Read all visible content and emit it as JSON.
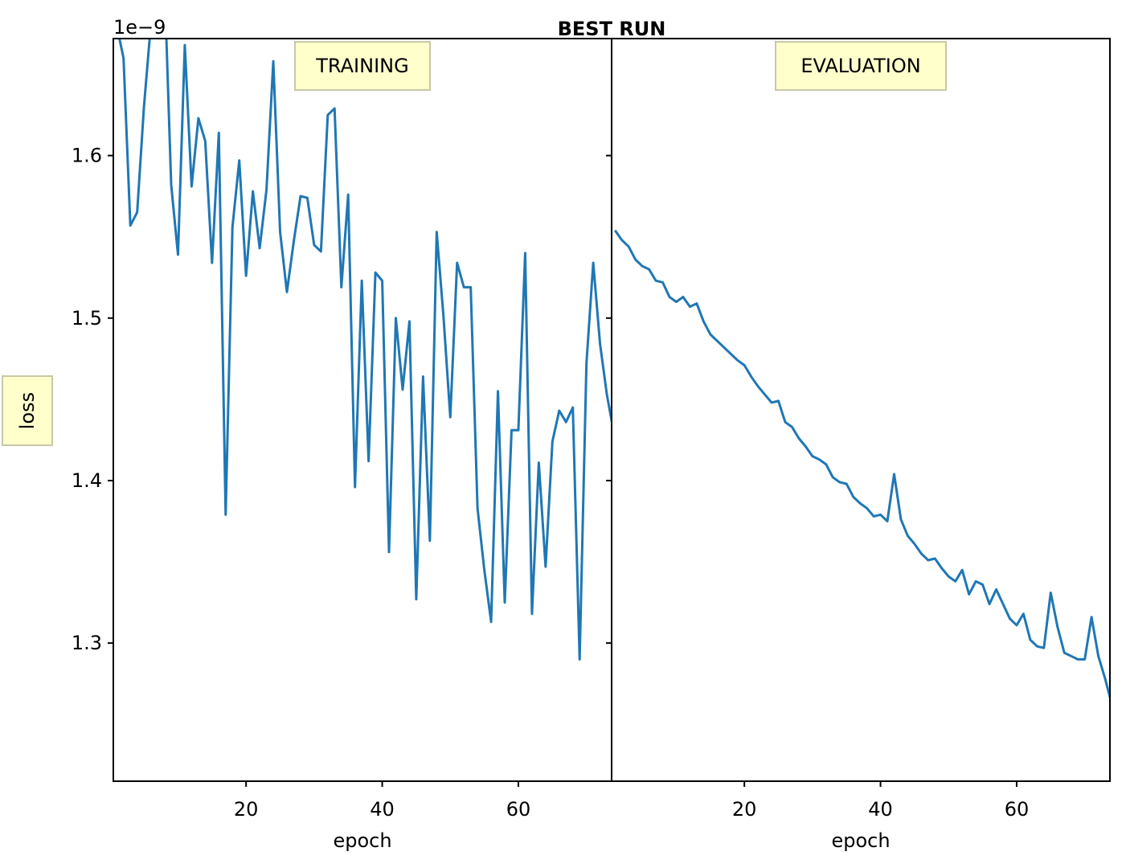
{
  "chart_data": {
    "type": "line",
    "title": "BEST RUN",
    "shared_ylabel": "loss",
    "y_offset_label": "1e−9",
    "ylim": [
      1.215,
      1.672
    ],
    "yticks": [
      1.3,
      1.4,
      1.5,
      1.6
    ],
    "ytick_labels": [
      "1.3",
      "1.4",
      "1.5",
      "1.6"
    ],
    "grid": false,
    "series_color": "#1f77b4",
    "badge_color": "#ffffcc",
    "panels": [
      {
        "name": "TRAINING",
        "xlabel": "epoch",
        "xlim": [
          0.5,
          73.7
        ],
        "xticks": [
          20,
          40,
          60
        ],
        "xtick_labels": [
          "20",
          "40",
          "60"
        ],
        "x": [
          1,
          2,
          3,
          4,
          5,
          6,
          7,
          8,
          9,
          10,
          11,
          12,
          13,
          14,
          15,
          16,
          17,
          18,
          19,
          20,
          21,
          22,
          23,
          24,
          25,
          26,
          27,
          28,
          29,
          30,
          31,
          32,
          33,
          34,
          35,
          36,
          37,
          38,
          39,
          40,
          41,
          42,
          43,
          44,
          45,
          46,
          47,
          48,
          49,
          50,
          51,
          52,
          53,
          54,
          55,
          56,
          57,
          58,
          59,
          60,
          61,
          62,
          63,
          64,
          65,
          66,
          67,
          68,
          69,
          70,
          71,
          72,
          73,
          74
        ],
        "y": [
          1.68,
          1.66,
          1.557,
          1.565,
          1.63,
          1.68,
          1.72,
          1.71,
          1.582,
          1.539,
          1.668,
          1.581,
          1.623,
          1.609,
          1.534,
          1.614,
          1.379,
          1.556,
          1.597,
          1.526,
          1.578,
          1.543,
          1.579,
          1.658,
          1.553,
          1.516,
          1.547,
          1.575,
          1.574,
          1.545,
          1.541,
          1.625,
          1.629,
          1.519,
          1.576,
          1.396,
          1.523,
          1.412,
          1.528,
          1.523,
          1.356,
          1.5,
          1.456,
          1.498,
          1.327,
          1.464,
          1.363,
          1.553,
          1.501,
          1.439,
          1.534,
          1.519,
          1.519,
          1.383,
          1.345,
          1.313,
          1.455,
          1.325,
          1.431,
          1.431,
          1.54,
          1.318,
          1.411,
          1.347,
          1.424,
          1.443,
          1.436,
          1.445,
          1.29,
          1.472,
          1.534,
          1.484,
          1.453,
          1.43
        ]
      },
      {
        "name": "EVALUATION",
        "xlabel": "epoch",
        "xlim": [
          0.5,
          73.7
        ],
        "xticks": [
          20,
          40,
          60
        ],
        "xtick_labels": [
          "20",
          "40",
          "60"
        ],
        "x": [
          1,
          2,
          3,
          4,
          5,
          6,
          7,
          8,
          9,
          10,
          11,
          12,
          13,
          14,
          15,
          16,
          17,
          18,
          19,
          20,
          21,
          22,
          23,
          24,
          25,
          26,
          27,
          28,
          29,
          30,
          31,
          32,
          33,
          34,
          35,
          36,
          37,
          38,
          39,
          40,
          41,
          42,
          43,
          44,
          45,
          46,
          47,
          48,
          49,
          50,
          51,
          52,
          53,
          54,
          55,
          56,
          57,
          58,
          59,
          60,
          61,
          62,
          63,
          64,
          65,
          66,
          67,
          68,
          69,
          70,
          71,
          72,
          73,
          74
        ],
        "y": [
          1.554,
          1.548,
          1.544,
          1.536,
          1.532,
          1.53,
          1.523,
          1.522,
          1.513,
          1.51,
          1.513,
          1.507,
          1.509,
          1.498,
          1.49,
          1.486,
          1.482,
          1.478,
          1.474,
          1.471,
          1.464,
          1.458,
          1.453,
          1.448,
          1.449,
          1.436,
          1.433,
          1.426,
          1.421,
          1.415,
          1.413,
          1.41,
          1.402,
          1.399,
          1.398,
          1.39,
          1.386,
          1.383,
          1.378,
          1.379,
          1.375,
          1.404,
          1.376,
          1.366,
          1.361,
          1.355,
          1.351,
          1.352,
          1.346,
          1.341,
          1.338,
          1.345,
          1.33,
          1.338,
          1.336,
          1.324,
          1.333,
          1.324,
          1.315,
          1.311,
          1.318,
          1.302,
          1.298,
          1.297,
          1.331,
          1.31,
          1.294,
          1.292,
          1.29,
          1.29,
          1.316,
          1.292,
          1.278,
          1.262
        ]
      }
    ]
  }
}
